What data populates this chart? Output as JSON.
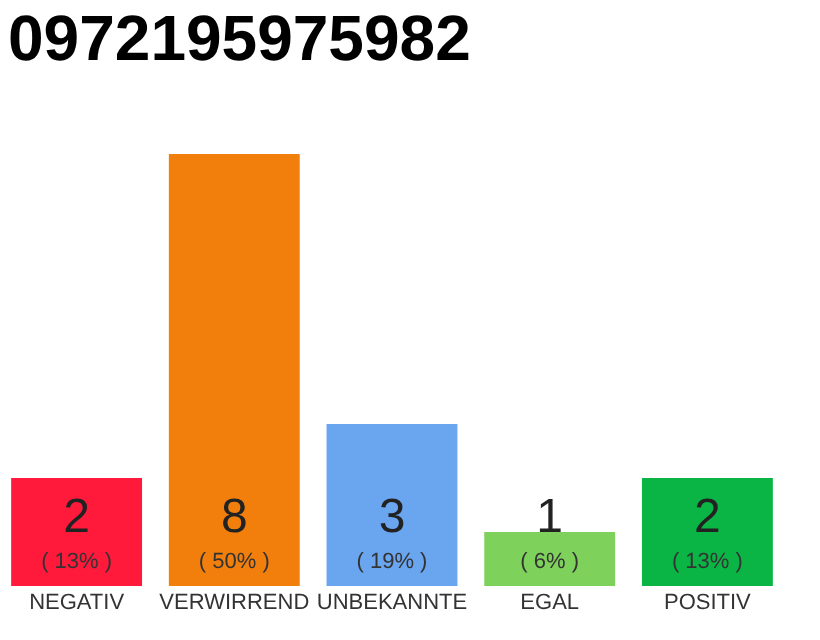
{
  "chart_data": {
    "type": "bar",
    "title": "0972195975982",
    "categories": [
      "NEGATIV",
      "VERWIRREND",
      "UNBEKANNTE",
      "EGAL",
      "POSITIV"
    ],
    "values": [
      2,
      8,
      3,
      1,
      2
    ],
    "colors": [
      "#ff1a3c",
      "#f27f0c",
      "#6aa5f0",
      "#7ed15b",
      "#0ab545"
    ],
    "ylim": [
      0,
      8
    ],
    "data_labels": true,
    "tick_labels": "x",
    "grid": false,
    "annotations": [
      "( 13% )",
      "( 50% )",
      "( 19% )",
      "( 6% )",
      "( 13% )"
    ]
  }
}
